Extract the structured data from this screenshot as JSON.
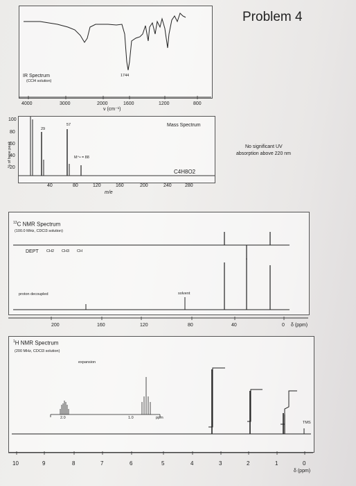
{
  "title": "Problem 4",
  "ir": {
    "label": "IR Spectrum",
    "sublabel": "(CCl4 solution)",
    "peak_label": "1744",
    "ticks": [
      "4000",
      "3000",
      "2000",
      "1600",
      "1200",
      "800"
    ],
    "xlabel": "ν (cm⁻¹)"
  },
  "ms": {
    "label": "Mass Spectrum",
    "yticks": [
      "100",
      "80",
      "60",
      "40",
      "20"
    ],
    "ylabel": "% of base peak",
    "xticks": [
      "40",
      "80",
      "120",
      "160",
      "200",
      "240",
      "280"
    ],
    "xlabel": "m/e",
    "peak_labels": [
      "29",
      "57"
    ],
    "molecular_ion": "M⁺• = 88",
    "formula": "C4H8O2",
    "uv_note_line1": "No significant UV",
    "uv_note_line2": "absorption above 220 nm"
  },
  "c13": {
    "label": "13C NMR Spectrum",
    "label_sup": "13",
    "label_main": "C NMR Spectrum",
    "sublabel": "(100.0 MHz, CDCl3 solution)",
    "dept_label": "DEPT",
    "dept_items": [
      "CH2",
      "CH3",
      "CH"
    ],
    "proton_decoupled": "proton decoupled",
    "solvent": "solvent",
    "xticks": [
      "200",
      "160",
      "120",
      "80",
      "40",
      "0"
    ],
    "xunit": "δ (ppm)"
  },
  "h1": {
    "label_sup": "1",
    "label_main": "H NMR Spectrum",
    "sublabel": "(200 MHz, CDCl3 solution)",
    "expansion": "expansion",
    "exp_tick1": "2.0",
    "exp_tick2": "1.0",
    "exp_unit": "ppm",
    "tms": "TMS",
    "xticks": [
      "10",
      "9",
      "8",
      "7",
      "6",
      "5",
      "4",
      "3",
      "2",
      "1",
      "0"
    ],
    "xunit": "δ (ppm)"
  }
}
